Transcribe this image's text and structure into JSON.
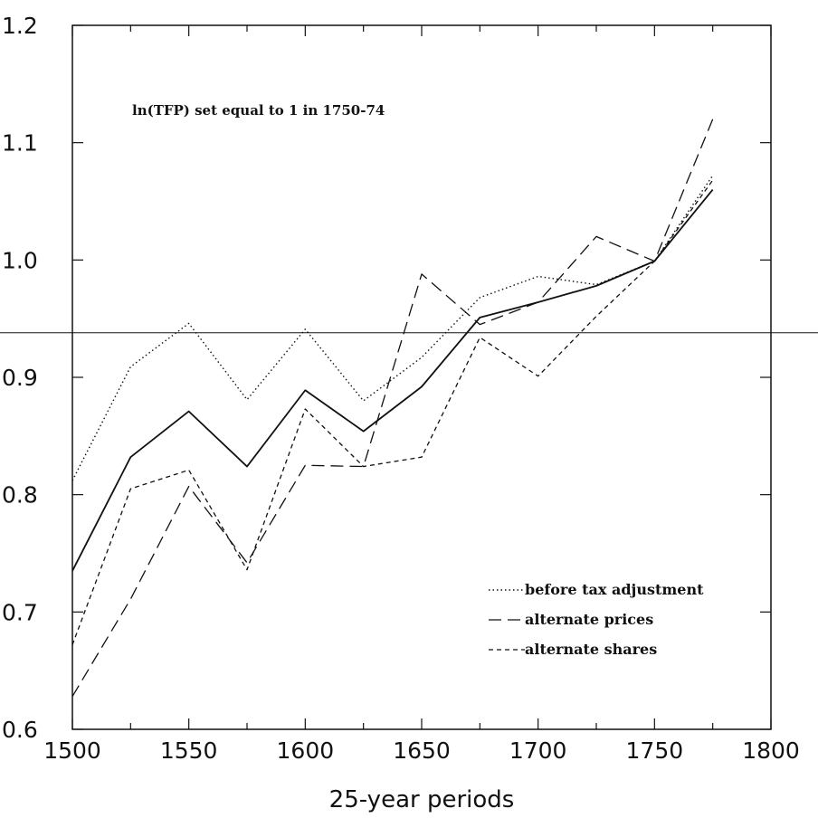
{
  "chart_data": {
    "type": "line",
    "title": "",
    "xlabel": "25-year periods",
    "ylabel": "",
    "xlim": [
      1500,
      1800
    ],
    "ylim": [
      0.6,
      1.2
    ],
    "xticks": [
      1500,
      1550,
      1600,
      1650,
      1700,
      1750,
      1800
    ],
    "yticks": [
      0.6,
      0.7,
      0.8,
      0.9,
      1.0,
      1.1,
      1.2
    ],
    "ytick_labels": [
      "0.6",
      "0.7",
      "0.8",
      "0.9",
      "1.0",
      "1.1",
      "1.2"
    ],
    "grid": false,
    "annotation": "ln(TFP) set equal to 1 in 1750-74",
    "legend_position": "bottom-right",
    "reference_line_y": 0.938,
    "x": [
      1500,
      1525,
      1550,
      1575,
      1600,
      1625,
      1650,
      1675,
      1700,
      1725,
      1750,
      1775
    ],
    "series": [
      {
        "name": "",
        "style": "solid",
        "values": [
          0.735,
          0.832,
          0.871,
          0.824,
          0.889,
          0.854,
          0.892,
          0.951,
          0.964,
          0.978,
          0.999,
          1.06
        ]
      },
      {
        "name": "before tax adjustment",
        "style": "dotted",
        "values": [
          0.812,
          0.909,
          0.946,
          0.881,
          0.941,
          0.88,
          0.917,
          0.968,
          0.986,
          0.979,
          0.999,
          1.072
        ]
      },
      {
        "name": "alternate prices",
        "style": "longdash",
        "values": [
          0.628,
          0.711,
          0.807,
          0.742,
          0.825,
          0.824,
          0.988,
          0.945,
          0.964,
          1.02,
          0.999,
          1.12
        ]
      },
      {
        "name": "alternate shares",
        "style": "shortdash",
        "values": [
          0.672,
          0.805,
          0.821,
          0.736,
          0.873,
          0.824,
          0.832,
          0.934,
          0.901,
          0.952,
          0.999,
          1.068
        ]
      }
    ]
  }
}
